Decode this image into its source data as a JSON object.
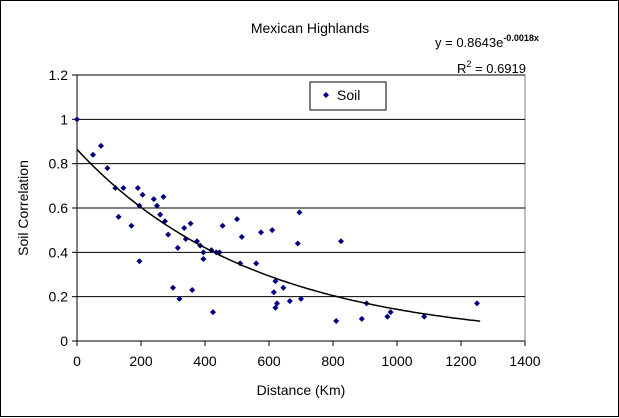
{
  "chart_data": {
    "type": "scatter",
    "title": "Mexican Highlands",
    "xlabel": "Distance (Km)",
    "ylabel": "Soil Correlation",
    "xlim": [
      0,
      1400
    ],
    "ylim": [
      0,
      1.2
    ],
    "x_ticks": [
      0,
      200,
      400,
      600,
      800,
      1000,
      1200,
      1400
    ],
    "y_ticks": [
      0,
      0.2,
      0.4,
      0.6,
      0.8,
      1,
      1.2
    ],
    "y_tick_labels": [
      "0",
      "0.2",
      "0.4",
      "0.6",
      "0.8",
      "1",
      "1.2"
    ],
    "grid": "horizontal",
    "legend": {
      "position": "top-center",
      "entries": [
        "Soil"
      ]
    },
    "series": [
      {
        "name": "Soil",
        "color": "#000080",
        "marker": "diamond",
        "points": [
          [
            0,
            1.0
          ],
          [
            50,
            0.84
          ],
          [
            75,
            0.88
          ],
          [
            95,
            0.78
          ],
          [
            120,
            0.69
          ],
          [
            130,
            0.56
          ],
          [
            145,
            0.69
          ],
          [
            170,
            0.52
          ],
          [
            190,
            0.69
          ],
          [
            195,
            0.61
          ],
          [
            195,
            0.36
          ],
          [
            205,
            0.66
          ],
          [
            240,
            0.64
          ],
          [
            250,
            0.61
          ],
          [
            260,
            0.57
          ],
          [
            270,
            0.65
          ],
          [
            275,
            0.54
          ],
          [
            285,
            0.48
          ],
          [
            300,
            0.24
          ],
          [
            315,
            0.42
          ],
          [
            320,
            0.19
          ],
          [
            335,
            0.51
          ],
          [
            340,
            0.46
          ],
          [
            355,
            0.53
          ],
          [
            360,
            0.23
          ],
          [
            375,
            0.45
          ],
          [
            385,
            0.43
          ],
          [
            395,
            0.4
          ],
          [
            395,
            0.37
          ],
          [
            420,
            0.41
          ],
          [
            425,
            0.13
          ],
          [
            435,
            0.4
          ],
          [
            445,
            0.4
          ],
          [
            455,
            0.52
          ],
          [
            500,
            0.55
          ],
          [
            510,
            0.35
          ],
          [
            515,
            0.47
          ],
          [
            560,
            0.35
          ],
          [
            575,
            0.49
          ],
          [
            610,
            0.5
          ],
          [
            615,
            0.22
          ],
          [
            620,
            0.27
          ],
          [
            620,
            0.15
          ],
          [
            625,
            0.17
          ],
          [
            645,
            0.24
          ],
          [
            665,
            0.18
          ],
          [
            690,
            0.44
          ],
          [
            695,
            0.58
          ],
          [
            700,
            0.19
          ],
          [
            810,
            0.09
          ],
          [
            825,
            0.45
          ],
          [
            890,
            0.1
          ],
          [
            905,
            0.17
          ],
          [
            970,
            0.11
          ],
          [
            980,
            0.13
          ],
          [
            1085,
            0.11
          ],
          [
            1250,
            0.17
          ]
        ]
      }
    ],
    "trendline": {
      "type": "exponential",
      "a": 0.8643,
      "b": -0.0018,
      "x_range": [
        0,
        1260
      ],
      "color": "#000000"
    },
    "annotations": {
      "equation_prefix": "y = 0.8643e",
      "equation_exponent": "-0.0018x",
      "r2_prefix": "R",
      "r2_sup": "2",
      "r2_suffix": " = 0.6919"
    }
  }
}
